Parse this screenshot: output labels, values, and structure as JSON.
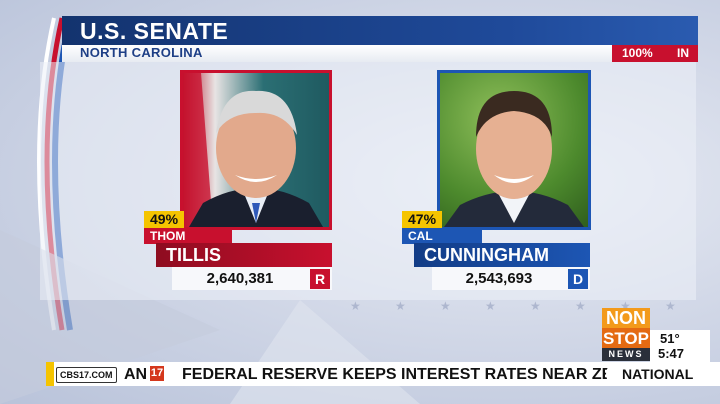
{
  "header": {
    "title": "U.S. SENATE",
    "state": "NORTH CAROLINA",
    "reporting_pct": "100%",
    "reporting_label": "IN"
  },
  "candidates": [
    {
      "pct": "49%",
      "first": "THOM",
      "last": "TILLIS",
      "votes": "2,640,381",
      "party": "R",
      "color": "#c8102e"
    },
    {
      "pct": "47%",
      "first": "CAL",
      "last": "CUNNINGHAM",
      "votes": "2,543,693",
      "party": "D",
      "color": "#1d56b4"
    }
  ],
  "ticker": {
    "station_tag": "CBS17.COM",
    "fragment": "AN",
    "logo": "17",
    "headline": "FEDERAL RESERVE KEEPS INTEREST RATES NEAR ZERO DUE T",
    "segment": "NATIONAL"
  },
  "brand": {
    "line1": "NON",
    "line2": "STOP",
    "line3": "NEWS"
  },
  "weather": {
    "temp": "51°",
    "time": "5:47"
  }
}
